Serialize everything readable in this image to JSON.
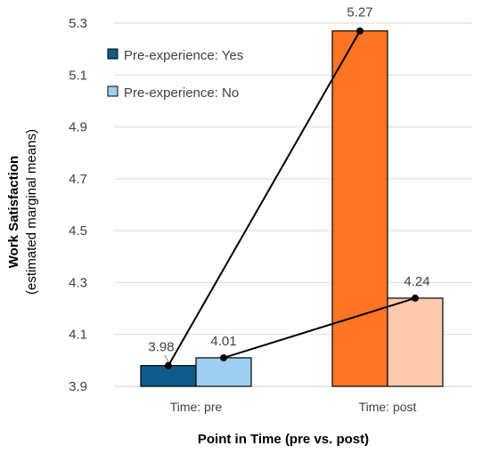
{
  "chart_data": {
    "type": "bar",
    "categories": [
      "Time: pre",
      "Time: post"
    ],
    "series": [
      {
        "name": "Pre-experience: Yes",
        "values": [
          3.98,
          5.27
        ],
        "colors": [
          "#0E5A8A",
          "#FF7425"
        ]
      },
      {
        "name": "Pre-experience: No",
        "values": [
          4.01,
          4.24
        ],
        "colors": [
          "#9DCFF2",
          "#FFC9AE"
        ]
      }
    ],
    "data_labels": [
      "3.98",
      "4.01",
      "5.27",
      "4.24"
    ],
    "lines": "connect pre and post values of each series",
    "ylabel": "Work Satisfaction",
    "ylabel_sub": "(estimated marginal means)",
    "xlabel": "Point in Time (pre vs. post)",
    "ylim": [
      3.9,
      5.3
    ],
    "yticks": [
      "3.9",
      "4.1",
      "4.3",
      "4.5",
      "4.7",
      "4.9",
      "5.1",
      "5.3"
    ],
    "grid": true,
    "legend_position": "top-left"
  },
  "colors": {
    "grid": "#D9D9D9",
    "line": "#000000",
    "bar_outline": "#000000"
  }
}
